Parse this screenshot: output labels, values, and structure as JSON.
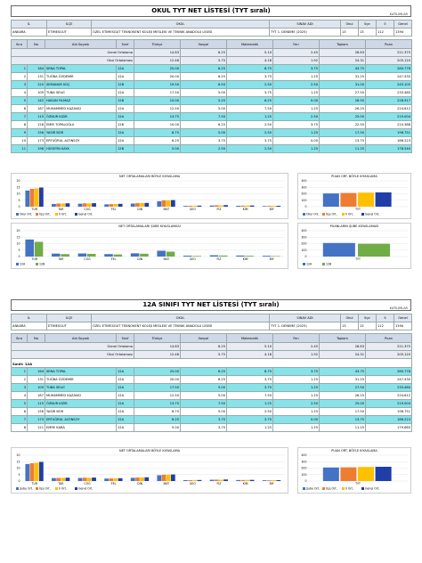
{
  "sections": [
    {
      "title": "OKUL TYT NET LİSTESİ (TYT sıralı)",
      "katilim": "KATILIMLAR",
      "header_labels": [
        "İL",
        "İLÇE",
        "OKUL",
        "SINAV ADI",
        "Okul",
        "İlçe",
        "İl",
        "Genel"
      ],
      "header_values": [
        "ANKARA",
        "ETİMESGUT",
        "ÖZEL ETİMESGUT TEKNOKENT KOLEJİ MESLEKİ VE TEKNİK ANADOLU LİSESİ",
        "TYT 1. DENEME (2025)",
        "13",
        "13",
        "112",
        "1394"
      ],
      "columns": [
        "Sıra",
        "No",
        "Adı Soyadı",
        "Sınıf",
        "Türkçe",
        "Sosyal",
        "Matematik",
        "Fen",
        "Toplam",
        "Puan"
      ],
      "averages": [
        {
          "label": "Genel Ortalama",
          "values": [
            "14.83",
            "6.25",
            "5.10",
            "2.45",
            "28.63",
            "221.375"
          ]
        },
        {
          "label": "Okul Ortalaması",
          "values": [
            "12.46",
            "5.75",
            "4.18",
            "1.92",
            "24.31",
            "205.120"
          ]
        }
      ],
      "rows": [
        [
          "1",
          "164",
          "SENA TOPAL",
          "12A",
          "25.00",
          "6.25",
          "8.75",
          "3.75",
          "43.75",
          "280.778"
        ],
        [
          "2",
          "131",
          "TUĞBA ÖZDEMİR",
          "12A",
          "20.00",
          "6.25",
          "3.75",
          "1.25",
          "31.25",
          "247.430"
        ],
        [
          "3",
          "120",
          "SEMANUR KOÇ",
          "12B",
          "19.50",
          "6.50",
          "2.50",
          "2.50",
          "31.00",
          "245.105"
        ],
        [
          "4",
          "109",
          "TUBA SELVİ",
          "12A",
          "17.50",
          "5.00",
          "3.75",
          "1.25",
          "27.50",
          "233.480"
        ],
        [
          "5",
          "142",
          "HASAN YILMAZ",
          "12B",
          "15.00",
          "5.25",
          "6.25",
          "0.00",
          "26.50",
          "228.917"
        ],
        [
          "6",
          "187",
          "MUHAMMED KAZANCI",
          "12A",
          "12.50",
          "5.00",
          "7.50",
          "1.25",
          "26.25",
          "224.612"
        ],
        [
          "7",
          "115",
          "ÖZNUR KIZIR",
          "12A",
          "13.75",
          "7.50",
          "1.25",
          "2.50",
          "25.00",
          "219.004"
        ],
        [
          "8",
          "128",
          "EMİR TOPALOĞLU",
          "12B",
          "10.00",
          "6.25",
          "2.50",
          "3.75",
          "22.50",
          "210.388"
        ],
        [
          "9",
          "156",
          "YASİR BOR",
          "12A",
          "8.75",
          "5.00",
          "2.50",
          "1.25",
          "17.50",
          "196.751"
        ],
        [
          "10",
          "173",
          "ERTUĞRUL ALTINSOY",
          "12A",
          "6.25",
          "3.75",
          "3.75",
          "0.00",
          "13.75",
          "186.223"
        ],
        [
          "11",
          "198",
          "HÜSEYİN KAYA",
          "12B",
          "5.00",
          "2.50",
          "2.50",
          "1.25",
          "11.25",
          "178.540"
        ]
      ],
      "charts": [
        {
          "type": "bar",
          "title": "NET ORTALAMALARI BÖYLE KIYASLAMA",
          "categories": [
            "TUR",
            "TAR",
            "COĞ",
            "FEL",
            "DİN",
            "MAT",
            "GEO",
            "FİZ",
            "KİM",
            "BİY"
          ],
          "ylim": [
            0,
            20
          ],
          "yticks": [
            0,
            5,
            10,
            15,
            20
          ],
          "series": [
            {
              "name": "Okul Ort.",
              "color": "#4472c4",
              "values": [
                12.5,
                2.1,
                2.3,
                1.8,
                2.4,
                4.2,
                0.6,
                0.9,
                0.7,
                0.5
              ]
            },
            {
              "name": "İlçe Ort.",
              "color": "#ed7d31",
              "values": [
                13.8,
                2.4,
                2.6,
                2.0,
                2.7,
                4.9,
                0.7,
                1.1,
                0.8,
                0.6
              ]
            },
            {
              "name": "İl Ort.",
              "color": "#ffc000",
              "values": [
                14.2,
                2.5,
                2.5,
                2.1,
                2.8,
                5.0,
                0.8,
                1.0,
                0.9,
                0.7
              ]
            },
            {
              "name": "Genel Ort.",
              "color": "#1f3ea8",
              "values": [
                14.8,
                2.6,
                2.7,
                2.2,
                2.9,
                5.1,
                0.8,
                1.2,
                0.9,
                0.7
              ]
            }
          ]
        },
        {
          "type": "bar",
          "title": "PUAN ORT. BÖYLE KIYASLAMA",
          "categories": [
            "TYT"
          ],
          "ylim": [
            0,
            400
          ],
          "yticks": [
            0,
            100,
            200,
            300,
            400
          ],
          "series": [
            {
              "name": "Okul Ort.",
              "color": "#4472c4",
              "values": [
                205
              ]
            },
            {
              "name": "İlçe Ort.",
              "color": "#ed7d31",
              "values": [
                212
              ]
            },
            {
              "name": "İl Ort.",
              "color": "#ffc000",
              "values": [
                218
              ]
            },
            {
              "name": "Genel Ort.",
              "color": "#1f3ea8",
              "values": [
                221
              ]
            }
          ]
        },
        {
          "type": "bar",
          "title": "NET ORTALAMALARI ŞUBE KIYASLAMASI",
          "categories": [
            "TUR",
            "TAR",
            "COĞ",
            "FEL",
            "DİN",
            "MAT",
            "GEO",
            "FİZ",
            "KİM",
            "BİY"
          ],
          "ylim": [
            0,
            20
          ],
          "yticks": [
            0,
            5,
            10,
            15,
            20
          ],
          "series": [
            {
              "name": "12A",
              "color": "#4472c4",
              "values": [
                13.2,
                2.3,
                2.4,
                1.9,
                2.5,
                4.5,
                0.7,
                1.0,
                0.8,
                0.6
              ]
            },
            {
              "name": "12B",
              "color": "#70ad47",
              "values": [
                11.4,
                1.9,
                2.1,
                1.6,
                2.2,
                3.8,
                0.5,
                0.8,
                0.6,
                0.4
              ]
            }
          ]
        },
        {
          "type": "bar",
          "title": "PUANLARIN ŞUBE KIYASLAMASI",
          "categories": [
            "TYT"
          ],
          "ylim": [
            0,
            400
          ],
          "yticks": [
            0,
            100,
            200,
            300,
            400
          ],
          "series": [
            {
              "name": "12A",
              "color": "#4472c4",
              "values": [
                210
              ]
            },
            {
              "name": "12B",
              "color": "#70ad47",
              "values": [
                198
              ]
            }
          ]
        }
      ]
    },
    {
      "title": "12A SINIFI TYT NET LİSTESİ (TYT sıralı)",
      "katilim": "KATILIMLAR",
      "class_label": "Sınıfı: 12A",
      "header_labels": [
        "İL",
        "İLÇE",
        "OKUL",
        "SINAV ADI",
        "Okul",
        "İlçe",
        "İl",
        "Genel"
      ],
      "header_values": [
        "ANKARA",
        "ETİMESGUT",
        "ÖZEL ETİMESGUT TEKNOKENT KOLEJİ MESLEKİ VE TEKNİK ANADOLU LİSESİ",
        "TYT 1. DENEME (2025)",
        "13",
        "13",
        "112",
        "1394"
      ],
      "columns": [
        "Sıra",
        "No",
        "Adı Soyadı",
        "Sınıf",
        "Türkçe",
        "Sosyal",
        "Matematik",
        "Fen",
        "Toplam",
        "Puan"
      ],
      "averages": [
        {
          "label": "Genel Ortalama",
          "values": [
            "14.83",
            "6.25",
            "5.10",
            "2.45",
            "28.63",
            "221.375"
          ]
        },
        {
          "label": "Okul Ortalaması",
          "values": [
            "12.46",
            "5.75",
            "4.18",
            "1.92",
            "24.31",
            "205.120"
          ]
        }
      ],
      "rows": [
        [
          "1",
          "164",
          "SENA TOPAL",
          "12A",
          "25.00",
          "6.25",
          "8.75",
          "3.75",
          "43.75",
          "280.778"
        ],
        [
          "2",
          "131",
          "TUĞBA ÖZDEMİR",
          "12A",
          "20.00",
          "6.25",
          "3.75",
          "1.25",
          "31.25",
          "247.430"
        ],
        [
          "3",
          "109",
          "TUBA SELVİ",
          "12A",
          "17.50",
          "5.00",
          "3.75",
          "1.25",
          "27.50",
          "233.480"
        ],
        [
          "4",
          "187",
          "MUHAMMED KAZANCI",
          "12A",
          "12.50",
          "5.00",
          "7.50",
          "1.25",
          "26.25",
          "224.612"
        ],
        [
          "5",
          "115",
          "ÖZNUR KIZIR",
          "12A",
          "13.75",
          "7.50",
          "1.25",
          "2.50",
          "25.00",
          "219.004"
        ],
        [
          "6",
          "156",
          "YASİR BOR",
          "12A",
          "8.75",
          "5.00",
          "2.50",
          "1.25",
          "17.50",
          "196.751"
        ],
        [
          "7",
          "173",
          "ERTUĞRUL ALTINSOY",
          "12A",
          "6.25",
          "3.75",
          "3.75",
          "0.00",
          "13.75",
          "186.223"
        ],
        [
          "8",
          "121",
          "EMRE KARA",
          "12A",
          "5.00",
          "3.75",
          "1.25",
          "1.25",
          "11.25",
          "179.665"
        ]
      ],
      "charts": [
        {
          "type": "bar",
          "title": "NET ORTALAMALARI BÖYLE KIYASLAMA",
          "categories": [
            "TUR",
            "TAR",
            "COĞ",
            "FEL",
            "DİN",
            "MAT",
            "GEO",
            "FİZ",
            "KİM",
            "BİY"
          ],
          "ylim": [
            0,
            20
          ],
          "yticks": [
            0,
            5,
            10,
            15,
            20
          ],
          "series": [
            {
              "name": "Şube Ort.",
              "color": "#4472c4",
              "values": [
                13.2,
                2.3,
                2.4,
                1.9,
                2.5,
                4.5,
                0.7,
                1.0,
                0.8,
                0.6
              ]
            },
            {
              "name": "İlçe Ort.",
              "color": "#ed7d31",
              "values": [
                13.8,
                2.4,
                2.6,
                2.0,
                2.7,
                4.9,
                0.7,
                1.1,
                0.8,
                0.6
              ]
            },
            {
              "name": "İl Ort.",
              "color": "#ffc000",
              "values": [
                14.2,
                2.5,
                2.5,
                2.1,
                2.8,
                5.0,
                0.8,
                1.0,
                0.9,
                0.7
              ]
            },
            {
              "name": "Genel Ort.",
              "color": "#1f3ea8",
              "values": [
                14.8,
                2.6,
                2.7,
                2.2,
                2.9,
                5.1,
                0.8,
                1.2,
                0.9,
                0.7
              ]
            }
          ]
        },
        {
          "type": "bar",
          "title": "PUAN ORT. BÖYLE KIYASLAMA",
          "categories": [
            "TYT"
          ],
          "ylim": [
            0,
            400
          ],
          "yticks": [
            0,
            100,
            200,
            300,
            400
          ],
          "series": [
            {
              "name": "Şube Ort.",
              "color": "#4472c4",
              "values": [
                210
              ]
            },
            {
              "name": "İlçe Ort.",
              "color": "#ed7d31",
              "values": [
                212
              ]
            },
            {
              "name": "İl Ort.",
              "color": "#ffc000",
              "values": [
                218
              ]
            },
            {
              "name": "Genel Ort.",
              "color": "#1f3ea8",
              "values": [
                221
              ]
            }
          ]
        }
      ]
    }
  ]
}
